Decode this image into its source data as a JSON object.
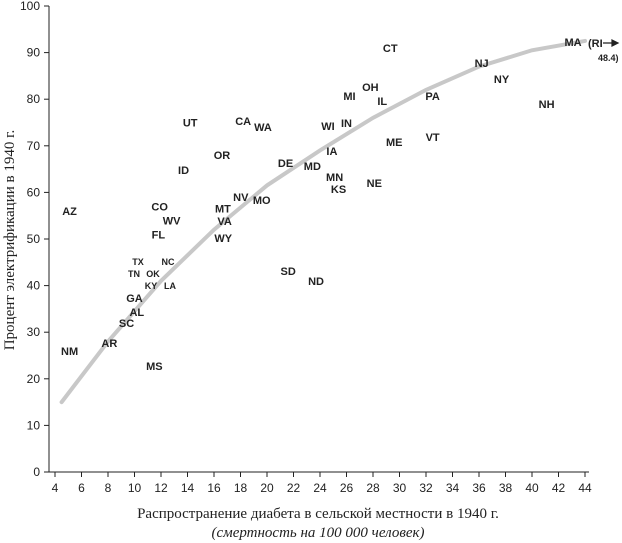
{
  "chart_data": {
    "type": "scatter",
    "xlabel": "Распространение диабета в сельской местности в 1940 г.",
    "xlabel_sub": "(смертность на 100 000 человек)",
    "ylabel": "Процент электрификации в 1940 г.",
    "xlim": [
      4,
      44
    ],
    "ylim": [
      0,
      100
    ],
    "xticks": [
      4,
      6,
      8,
      10,
      12,
      14,
      16,
      18,
      20,
      22,
      24,
      26,
      28,
      30,
      32,
      34,
      36,
      38,
      40,
      42,
      44
    ],
    "yticks": [
      0,
      10,
      20,
      30,
      40,
      50,
      60,
      70,
      80,
      90,
      100
    ],
    "grid": false,
    "points": [
      {
        "label": "AZ",
        "x": 5.1,
        "y": 56
      },
      {
        "label": "NM",
        "x": 5.1,
        "y": 26
      },
      {
        "label": "AR",
        "x": 8.1,
        "y": 27.7
      },
      {
        "label": "SC",
        "x": 9.4,
        "y": 32
      },
      {
        "label": "GA",
        "x": 10.0,
        "y": 36.5
      },
      {
        "label": "AL",
        "x": 10.1,
        "y": 34.8
      },
      {
        "label": "MS",
        "x": 11.5,
        "y": 22.7
      },
      {
        "label": "CO",
        "x": 11.9,
        "y": 57
      },
      {
        "label": "WV",
        "x": 12.8,
        "y": 54
      },
      {
        "label": "FL",
        "x": 11.8,
        "y": 51
      },
      {
        "label": "TX",
        "x": 10.9,
        "y": 43.5,
        "small": true
      },
      {
        "label": "NC",
        "x": 12.3,
        "y": 44,
        "small": true
      },
      {
        "label": "TN",
        "x": 11.2,
        "y": 42.5,
        "small": true
      },
      {
        "label": "OK",
        "x": 11.8,
        "y": 43,
        "small": true
      },
      {
        "label": "KY",
        "x": 12.1,
        "y": 41.6,
        "small": true
      },
      {
        "label": "LA",
        "x": 12.4,
        "y": 41.2,
        "small": true
      },
      {
        "label": "ID",
        "x": 13.7,
        "y": 64.8
      },
      {
        "label": "UT",
        "x": 14.2,
        "y": 75
      },
      {
        "label": "OR",
        "x": 16.6,
        "y": 68
      },
      {
        "label": "CA",
        "x": 18.2,
        "y": 75.3
      },
      {
        "label": "WA",
        "x": 19.7,
        "y": 74
      },
      {
        "label": "MT",
        "x": 16.9,
        "y": 57
      },
      {
        "label": "NV",
        "x": 18.1,
        "y": 58.6
      },
      {
        "label": "MO",
        "x": 19.6,
        "y": 58.4
      },
      {
        "label": "VA",
        "x": 16.8,
        "y": 53.2
      },
      {
        "label": "WY",
        "x": 16.7,
        "y": 50.9
      },
      {
        "label": "DE",
        "x": 21.4,
        "y": 66.3
      },
      {
        "label": "SD",
        "x": 21.6,
        "y": 43.1
      },
      {
        "label": "ND",
        "x": 23.7,
        "y": 41
      },
      {
        "label": "MD",
        "x": 23.8,
        "y": 65
      },
      {
        "label": "MN",
        "x": 24.8,
        "y": 64
      },
      {
        "label": "KS",
        "x": 25.4,
        "y": 60.7
      },
      {
        "label": "IA",
        "x": 24.9,
        "y": 68.9
      },
      {
        "label": "WI",
        "x": 24.6,
        "y": 74.2
      },
      {
        "label": "IN",
        "x": 26.0,
        "y": 74.9
      },
      {
        "label": "MI",
        "x": 26.6,
        "y": 81.1
      },
      {
        "label": "OH",
        "x": 27.5,
        "y": 82.2
      },
      {
        "label": "IL",
        "x": 28.7,
        "y": 79.6
      },
      {
        "label": "CT",
        "x": 29.3,
        "y": 91
      },
      {
        "label": "ME",
        "x": 29.6,
        "y": 70.8
      },
      {
        "label": "NE",
        "x": 28.1,
        "y": 62
      },
      {
        "label": "VT",
        "x": 32.5,
        "y": 71.9
      },
      {
        "label": "PA",
        "x": 32.5,
        "y": 80.7
      },
      {
        "label": "NJ",
        "x": 36.2,
        "y": 87.8
      },
      {
        "label": "NY",
        "x": 37.7,
        "y": 84.3
      },
      {
        "label": "NH",
        "x": 41.1,
        "y": 79
      },
      {
        "label": "MA",
        "x": 43.1,
        "y": 92.3
      }
    ],
    "offchart": {
      "label": "(RI",
      "value_label": "48.4)",
      "x": 48.4,
      "y": 92
    },
    "trend": {
      "x": [
        4.5,
        8,
        12,
        16,
        20,
        24,
        28,
        32,
        36,
        40,
        44
      ],
      "y": [
        15,
        28,
        41,
        52,
        61.5,
        69,
        76,
        82,
        87,
        90.5,
        92.5
      ]
    },
    "trend_color": "#c8c8c8"
  }
}
